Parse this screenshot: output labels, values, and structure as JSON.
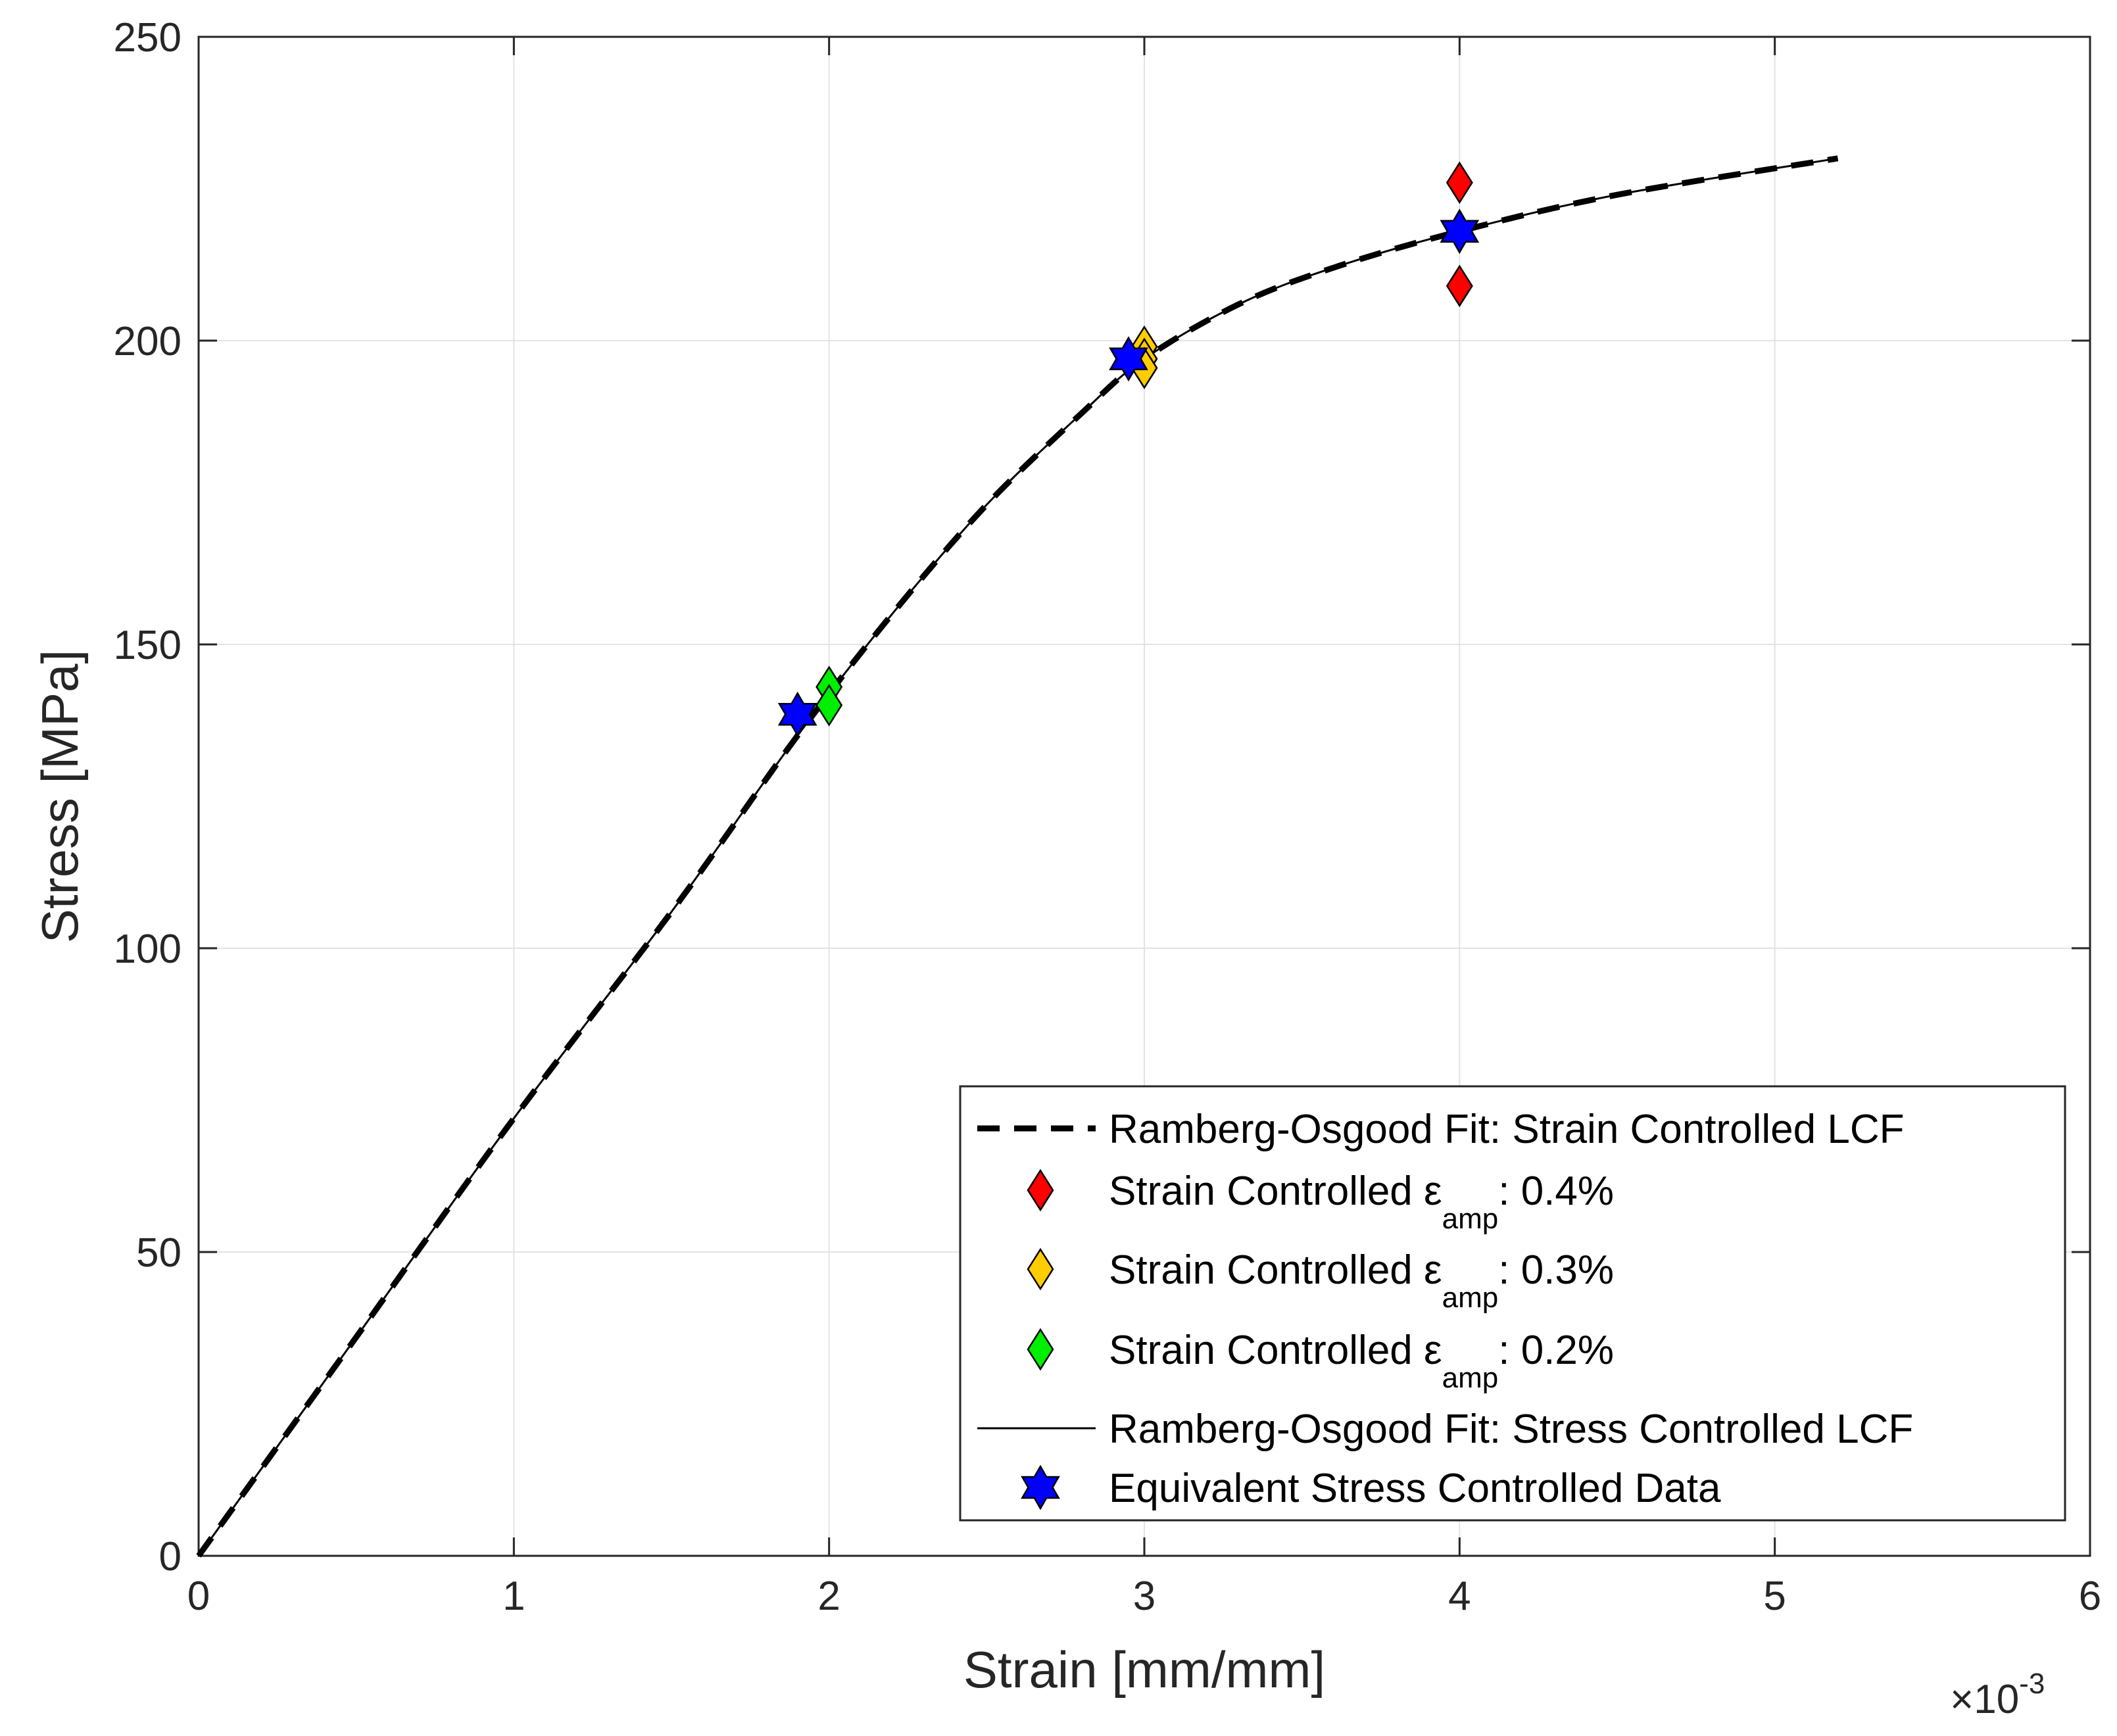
{
  "chart_data": {
    "type": "line",
    "xlabel": "Strain [mm/mm]",
    "ylabel": "Stress [MPa]",
    "xlim": [
      0,
      6
    ],
    "ylim": [
      0,
      250
    ],
    "x_multiplier_label": "×10",
    "x_multiplier_exponent": "-3",
    "x_ticks": [
      0,
      1,
      2,
      3,
      4,
      5,
      6
    ],
    "x_tick_labels": [
      "0",
      "1",
      "2",
      "3",
      "4",
      "5",
      "6"
    ],
    "y_ticks": [
      0,
      50,
      100,
      150,
      200,
      250
    ],
    "y_tick_labels": [
      "0",
      "50",
      "100",
      "150",
      "200",
      "250"
    ],
    "grid": true,
    "legend_position": "bottom-right",
    "series": [
      {
        "name": "Ramberg-Osgood Fit: Strain Controlled LCF",
        "style": "dashed",
        "color": "#000000",
        "x": [
          0,
          0.5,
          1.0,
          1.5,
          1.9,
          2.2,
          2.5,
          2.8,
          3.0,
          3.3,
          3.6,
          4.0,
          4.5,
          5.2
        ],
        "y": [
          0,
          36,
          72,
          106,
          135,
          155,
          173,
          188,
          197,
          206,
          212,
          218,
          224,
          230
        ]
      },
      {
        "name": "Strain Controlled εamp: 0.4%",
        "style": "marker-diamond",
        "color": "#ff0000",
        "x": [
          4.0,
          4.0,
          4.0
        ],
        "y": [
          226,
          218,
          209
        ]
      },
      {
        "name": "Strain Controlled εamp: 0.3%",
        "style": "marker-diamond",
        "color": "#ffcc00",
        "x": [
          3.0,
          3.0,
          3.0
        ],
        "y": [
          199,
          197,
          195.5
        ]
      },
      {
        "name": "Strain Controlled εamp: 0.2%",
        "style": "marker-diamond",
        "color": "#00ee00",
        "x": [
          2.0,
          2.0
        ],
        "y": [
          143,
          140
        ]
      },
      {
        "name": "Ramberg-Osgood Fit: Stress Controlled LCF",
        "style": "solid",
        "color": "#000000",
        "x": [
          0,
          0.5,
          1.0,
          1.5,
          1.9,
          2.2,
          2.5,
          2.8,
          3.0,
          3.3,
          3.6,
          4.0,
          4.5,
          5.2
        ],
        "y": [
          0,
          36,
          72,
          106,
          135,
          155,
          173,
          188,
          197,
          206,
          212,
          218,
          224,
          230
        ]
      },
      {
        "name": "Equivalent Stress Controlled Data",
        "style": "marker-hexagram",
        "color": "#0000ff",
        "x": [
          1.9,
          2.95,
          4.0
        ],
        "y": [
          138.5,
          197,
          218
        ]
      }
    ],
    "legend_entries": [
      {
        "prefix": "Ramberg-Osgood Fit: Strain Controlled LCF",
        "sub": "",
        "suffix": ""
      },
      {
        "prefix": "Strain Controlled ε",
        "sub": "amp",
        "suffix": ": 0.4%"
      },
      {
        "prefix": "Strain Controlled ε",
        "sub": "amp",
        "suffix": ": 0.3%"
      },
      {
        "prefix": "Strain Controlled ε",
        "sub": "amp",
        "suffix": ": 0.2%"
      },
      {
        "prefix": "Ramberg-Osgood Fit: Stress Controlled LCF",
        "sub": "",
        "suffix": ""
      },
      {
        "prefix": "Equivalent Stress Controlled Data",
        "sub": "",
        "suffix": ""
      }
    ]
  }
}
